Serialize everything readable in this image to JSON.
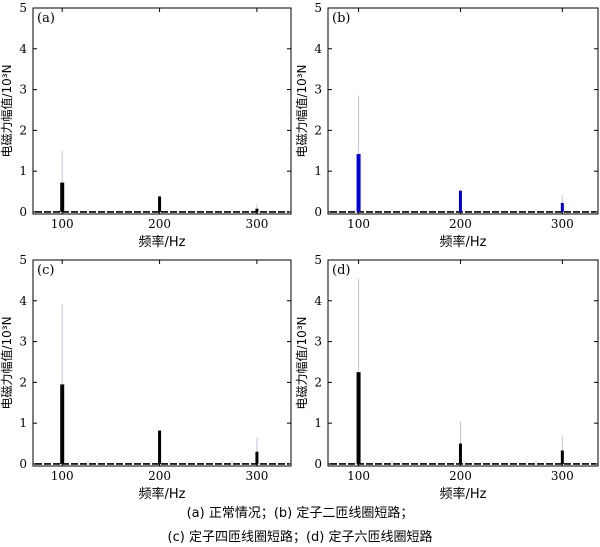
{
  "chart_data": [
    {
      "type": "bar",
      "panel_label": "(a)",
      "xlabel": "频率/Hz",
      "ylabel": "电磁力幅值/10³N",
      "xticks": [
        100,
        200,
        300
      ],
      "yticks": [
        0,
        1,
        2,
        3,
        4,
        5
      ],
      "xlim": [
        70,
        335
      ],
      "ylim": [
        -0.05,
        5
      ],
      "bar_color": "#000000",
      "line_color": "#bfc6e8",
      "series": [
        {
          "x": [
            100,
            200,
            300
          ],
          "values": [
            0.72,
            0.38,
            0.08
          ],
          "peak_values": [
            1.5,
            0.4,
            0.2
          ]
        }
      ]
    },
    {
      "type": "bar",
      "panel_label": "(b)",
      "xlabel": "频率/Hz",
      "ylabel": "电磁力幅值/10³N",
      "xticks": [
        100,
        200,
        300
      ],
      "yticks": [
        0,
        1,
        2,
        3,
        4,
        5
      ],
      "xlim": [
        70,
        335
      ],
      "ylim": [
        -0.05,
        5
      ],
      "bar_color": "#0000dd",
      "line_color": "#bfc6e8",
      "series": [
        {
          "x": [
            100,
            200,
            300
          ],
          "values": [
            1.42,
            0.52,
            0.22
          ],
          "peak_values": [
            2.85,
            0.55,
            0.42
          ]
        }
      ]
    },
    {
      "type": "bar",
      "panel_label": "(c)",
      "xlabel": "频率/Hz",
      "ylabel": "电磁力幅值/10³N",
      "xticks": [
        100,
        200,
        300
      ],
      "yticks": [
        0,
        1,
        2,
        3,
        4,
        5
      ],
      "xlim": [
        70,
        335
      ],
      "ylim": [
        -0.05,
        5
      ],
      "bar_color": "#000000",
      "line_color": "#bfc6e8",
      "series": [
        {
          "x": [
            100,
            200,
            300
          ],
          "values": [
            1.95,
            0.82,
            0.3
          ],
          "peak_values": [
            3.92,
            0.82,
            0.65
          ]
        }
      ]
    },
    {
      "type": "bar",
      "panel_label": "(d)",
      "xlabel": "频率/Hz",
      "ylabel": "电磁力幅值/10³N",
      "xticks": [
        100,
        200,
        300
      ],
      "yticks": [
        0,
        1,
        2,
        3,
        4,
        5
      ],
      "xlim": [
        70,
        335
      ],
      "ylim": [
        -0.05,
        5
      ],
      "bar_color": "#000000",
      "line_color": "#bfc6e8",
      "series": [
        {
          "x": [
            100,
            200,
            300
          ],
          "values": [
            2.25,
            0.5,
            0.33
          ],
          "peak_values": [
            4.55,
            1.05,
            0.7
          ]
        }
      ]
    }
  ],
  "caption": {
    "line1": "(a)  正常情况；(b)  定子二匝线圈短路；",
    "line2": "(c)  定子四匝线圈短路；(d)  定子六匝线圈短路"
  }
}
